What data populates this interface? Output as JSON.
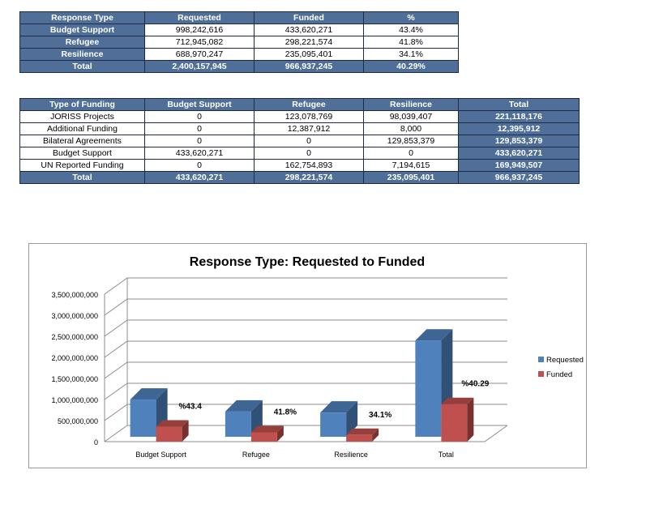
{
  "table1": {
    "headers": [
      "Response Type",
      "Requested",
      "Funded",
      "%"
    ],
    "rows": [
      [
        "Budget Support",
        "998,242,616",
        "433,620,271",
        "43.4%"
      ],
      [
        "Refugee",
        "712,945,082",
        "298,221,574",
        "41.8%"
      ],
      [
        "Resilience",
        "688,970,247",
        "235,095,401",
        "34.1%"
      ]
    ],
    "total": [
      "Total",
      "2,400,157,945",
      "966,937,245",
      "40.29%"
    ]
  },
  "table2": {
    "headers": [
      "Type of Funding",
      "Budget Support",
      "Refugee",
      "Resilience",
      "Total"
    ],
    "rows": [
      [
        "JORISS Projects",
        "0",
        "123,078,769",
        "98,039,407",
        "221,118,176"
      ],
      [
        "Additional Funding",
        "0",
        "12,387,912",
        "8,000",
        "12,395,912"
      ],
      [
        "Bilateral Agreements",
        "0",
        "0",
        "129,853,379",
        "129,853,379"
      ],
      [
        "Budget Support",
        "433,620,271",
        "0",
        "0",
        "433,620,271"
      ],
      [
        "UN Reported Funding",
        "0",
        "162,754,893",
        "7,194,615",
        "169,949,507"
      ]
    ],
    "total": [
      "Total",
      "433,620,271",
      "298,221,574",
      "235,095,401",
      "966,937,245"
    ]
  },
  "chart_data": {
    "type": "bar",
    "title": "Response Type: Requested to Funded",
    "categories": [
      "Budget Support",
      "Refugee",
      "Resilience",
      "Total"
    ],
    "series": [
      {
        "name": "Requested",
        "values": [
          998242616,
          712945082,
          688970247,
          2400157945
        ],
        "color": "#4f81bd"
      },
      {
        "name": "Funded",
        "values": [
          433620271,
          298221574,
          235095401,
          966937245
        ],
        "color": "#c0504d"
      }
    ],
    "data_labels": [
      "%43.4",
      "41.8%",
      "34.1%",
      "%40.29"
    ],
    "y_ticks": [
      "0",
      "500,000,000",
      "1,000,000,000",
      "1,500,000,000",
      "2,000,000,000",
      "2,500,000,000",
      "3,000,000,000",
      "3,500,000,000"
    ],
    "ylim": [
      0,
      3500000000
    ],
    "grid": true,
    "legend": "right",
    "style": "3d-clustered-column"
  }
}
